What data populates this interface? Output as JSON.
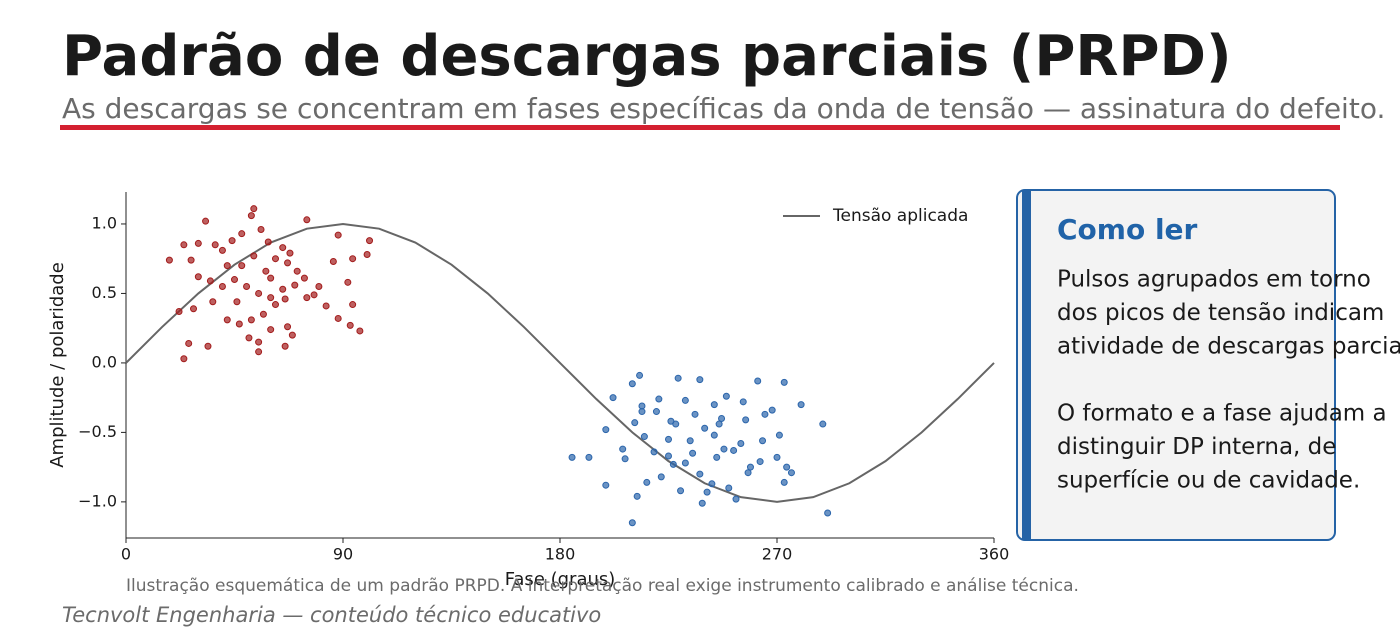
{
  "header": {
    "title": "Padrão de descargas parciais (PRPD)",
    "subtitle": "As descargas se concentram em fases específicas da onda de tensão — assinatura do defeito."
  },
  "chart_data": {
    "type": "scatter",
    "xlabel": "Fase (graus)",
    "ylabel": "Amplitude / polaridade",
    "xlim": [
      0,
      360
    ],
    "ylim": [
      -1.26,
      1.23
    ],
    "xticks": [
      0,
      90,
      180,
      270,
      360
    ],
    "yticks": [
      {
        "value": -1,
        "label": "−1.0"
      },
      {
        "value": -0.5,
        "label": "−0.5"
      },
      {
        "value": 0,
        "label": "0.0"
      },
      0.5,
      {
        "value": 1,
        "label": "1.0"
      }
    ],
    "legend": "upper right",
    "series": [
      {
        "type": "line",
        "name": "Tensão aplicada",
        "color": "#666666",
        "x": [
          0,
          15,
          30,
          45,
          60,
          75,
          90,
          105,
          120,
          135,
          150,
          165,
          180,
          195,
          210,
          225,
          240,
          255,
          270,
          285,
          300,
          315,
          330,
          345,
          360
        ],
        "values": [
          0,
          0.259,
          0.5,
          0.707,
          0.866,
          0.966,
          1,
          0.966,
          0.866,
          0.707,
          0.5,
          0.259,
          0,
          -0.259,
          -0.5,
          -0.707,
          -0.866,
          -0.966,
          -1,
          -0.966,
          -0.866,
          -0.707,
          -0.5,
          -0.259,
          0
        ]
      },
      {
        "type": "scatter",
        "color": "#a31c1c",
        "x": [
          33,
          53,
          52,
          75,
          88,
          101,
          100,
          94,
          86,
          92,
          94,
          93,
          97,
          88,
          83,
          78,
          80,
          74,
          71,
          67,
          65,
          59,
          56,
          48,
          44,
          40,
          37,
          30,
          24,
          18,
          27,
          30,
          35,
          40,
          45,
          50,
          55,
          60,
          65,
          70,
          62,
          57,
          52,
          47,
          42,
          36,
          28,
          22,
          26,
          24,
          34,
          55,
          55,
          60,
          67,
          69,
          66,
          51,
          46,
          58,
          62,
          68,
          53,
          48,
          42,
          60,
          75,
          66
        ],
        "values": [
          1.02,
          1.11,
          1.06,
          1.03,
          0.92,
          0.88,
          0.78,
          0.75,
          0.73,
          0.58,
          0.42,
          0.27,
          0.23,
          0.32,
          0.41,
          0.49,
          0.55,
          0.61,
          0.66,
          0.72,
          0.83,
          0.87,
          0.96,
          0.93,
          0.88,
          0.81,
          0.85,
          0.86,
          0.85,
          0.74,
          0.74,
          0.62,
          0.59,
          0.55,
          0.6,
          0.55,
          0.5,
          0.47,
          0.53,
          0.56,
          0.42,
          0.35,
          0.31,
          0.28,
          0.31,
          0.44,
          0.39,
          0.37,
          0.14,
          0.03,
          0.12,
          0.08,
          0.15,
          0.24,
          0.26,
          0.2,
          0.12,
          0.18,
          0.44,
          0.66,
          0.75,
          0.79,
          0.77,
          0.7,
          0.7,
          0.61,
          0.47,
          0.46
        ]
      },
      {
        "type": "scatter",
        "color": "#2b65ab",
        "x": [
          210,
          213,
          229,
          238,
          249,
          262,
          273,
          280,
          268,
          256,
          244,
          232,
          221,
          214,
          202,
          199,
          211,
          220,
          226,
          236,
          247,
          257,
          265,
          271,
          264,
          255,
          244,
          234,
          225,
          215,
          206,
          207,
          192,
          185,
          199,
          212,
          210,
          216,
          222,
          227,
          232,
          238,
          241,
          239,
          243,
          250,
          253,
          258,
          263,
          270,
          273,
          276,
          274,
          289,
          291,
          245,
          248,
          252,
          230,
          235,
          225,
          219,
          240,
          246,
          228,
          214,
          259
        ],
        "values": [
          -0.15,
          -0.09,
          -0.11,
          -0.12,
          -0.24,
          -0.13,
          -0.14,
          -0.3,
          -0.34,
          -0.28,
          -0.3,
          -0.27,
          -0.26,
          -0.31,
          -0.25,
          -0.48,
          -0.43,
          -0.35,
          -0.42,
          -0.37,
          -0.4,
          -0.41,
          -0.37,
          -0.52,
          -0.56,
          -0.58,
          -0.52,
          -0.56,
          -0.55,
          -0.53,
          -0.62,
          -0.69,
          -0.68,
          -0.68,
          -0.88,
          -0.96,
          -1.15,
          -0.86,
          -0.82,
          -0.73,
          -0.72,
          -0.8,
          -0.93,
          -1.01,
          -0.87,
          -0.9,
          -0.98,
          -0.79,
          -0.71,
          -0.68,
          -0.86,
          -0.79,
          -0.75,
          -0.44,
          -1.08,
          -0.68,
          -0.62,
          -0.63,
          -0.92,
          -0.65,
          -0.67,
          -0.64,
          -0.47,
          -0.44,
          -0.44,
          -0.35,
          -0.75
        ]
      }
    ]
  },
  "sidebar": {
    "title": "Como ler",
    "paragraphs": [
      [
        "Pulsos agrupados em torno",
        "dos picos de tensão indicam",
        "atividade de descargas parciais."
      ],
      [
        "O formato e a fase ajudam a",
        "distinguir DP interna, de",
        "superfície ou de cavidade."
      ]
    ]
  },
  "note": "Ilustração esquemática de um padrão PRPD. A interpretação real exige instrumento calibrado e análise técnica.",
  "footer": "Tecnvolt Engenharia — conteúdo técnico educativo"
}
